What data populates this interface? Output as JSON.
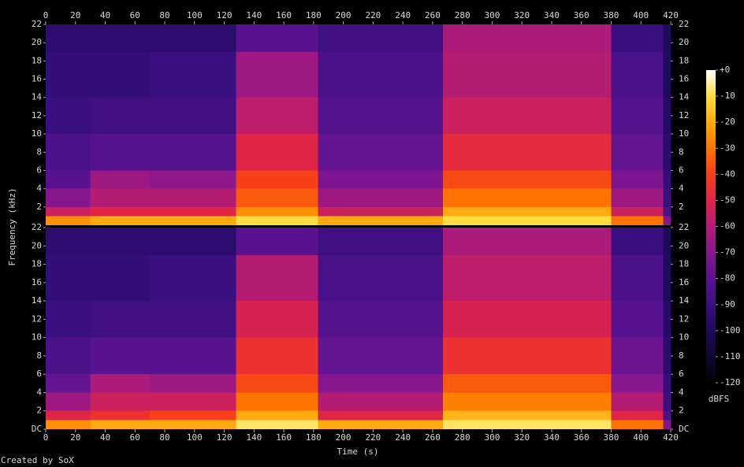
{
  "chart_data": {
    "type": "spectrogram",
    "x_label": "Time (s)",
    "y_label": "Frequency (kHz)",
    "xlim": [
      0,
      420
    ],
    "xticks": [
      0,
      20,
      40,
      60,
      80,
      100,
      120,
      140,
      160,
      180,
      200,
      220,
      240,
      260,
      280,
      300,
      320,
      340,
      360,
      380,
      400,
      420
    ],
    "x_edges": [
      0,
      30,
      70,
      128,
      183,
      267,
      380,
      415,
      420
    ],
    "y_edges": [
      0,
      1,
      2,
      4,
      6,
      10,
      14,
      19,
      22
    ],
    "colorbar_label": "dBFS",
    "clim": [
      -120,
      0
    ],
    "cticks": [
      {
        "value": 0,
        "label": "+0"
      },
      -10,
      -20,
      -30,
      -40,
      -50,
      -60,
      -70,
      -80,
      -90,
      -100,
      -110,
      -120
    ],
    "colormap": [
      "#000000",
      "#0e0830",
      "#1e0b5a",
      "#3a0f80",
      "#5a1390",
      "#86168e",
      "#b41c74",
      "#e02448",
      "#f5401a",
      "#ff7400",
      "#ffaa10",
      "#ffdd40",
      "#ffffff"
    ],
    "channels": [
      {
        "ylim": [
          0,
          22
        ],
        "yticks": [
          2,
          4,
          6,
          8,
          10,
          12,
          14,
          16,
          18,
          20,
          22
        ],
        "values": [
          [
            -25,
            -20,
            -20,
            -10,
            -20,
            -10,
            -30,
            -70
          ],
          [
            -55,
            -50,
            -50,
            -25,
            -55,
            -20,
            -55,
            -85
          ],
          [
            -70,
            -60,
            -60,
            -35,
            -65,
            -30,
            -65,
            -90
          ],
          [
            -80,
            -65,
            -68,
            -40,
            -72,
            -38,
            -72,
            -92
          ],
          [
            -85,
            -82,
            -82,
            -50,
            -78,
            -48,
            -78,
            -95
          ],
          [
            -90,
            -88,
            -88,
            -58,
            -82,
            -55,
            -82,
            -98
          ],
          [
            -92,
            -92,
            -90,
            -65,
            -85,
            -60,
            -85,
            -100
          ],
          [
            -95,
            -95,
            -95,
            -80,
            -88,
            -62,
            -90,
            -100
          ]
        ]
      },
      {
        "ylim": [
          0,
          22
        ],
        "yticks": [
          {
            "value": 0,
            "label": "DC"
          },
          2,
          4,
          6,
          8,
          10,
          12,
          14,
          16,
          18,
          20,
          22
        ],
        "values": [
          [
            -25,
            -20,
            -20,
            -8,
            -20,
            -8,
            -30,
            -70
          ],
          [
            -50,
            -45,
            -40,
            -20,
            -50,
            -18,
            -50,
            -85
          ],
          [
            -65,
            -55,
            -55,
            -30,
            -60,
            -28,
            -60,
            -90
          ],
          [
            -78,
            -62,
            -65,
            -38,
            -70,
            -35,
            -70,
            -92
          ],
          [
            -85,
            -80,
            -80,
            -45,
            -78,
            -45,
            -76,
            -95
          ],
          [
            -90,
            -88,
            -88,
            -52,
            -82,
            -52,
            -80,
            -98
          ],
          [
            -92,
            -92,
            -90,
            -60,
            -85,
            -58,
            -84,
            -100
          ],
          [
            -95,
            -95,
            -95,
            -80,
            -88,
            -62,
            -90,
            -100
          ]
        ]
      }
    ]
  },
  "credit": "Created by SoX"
}
